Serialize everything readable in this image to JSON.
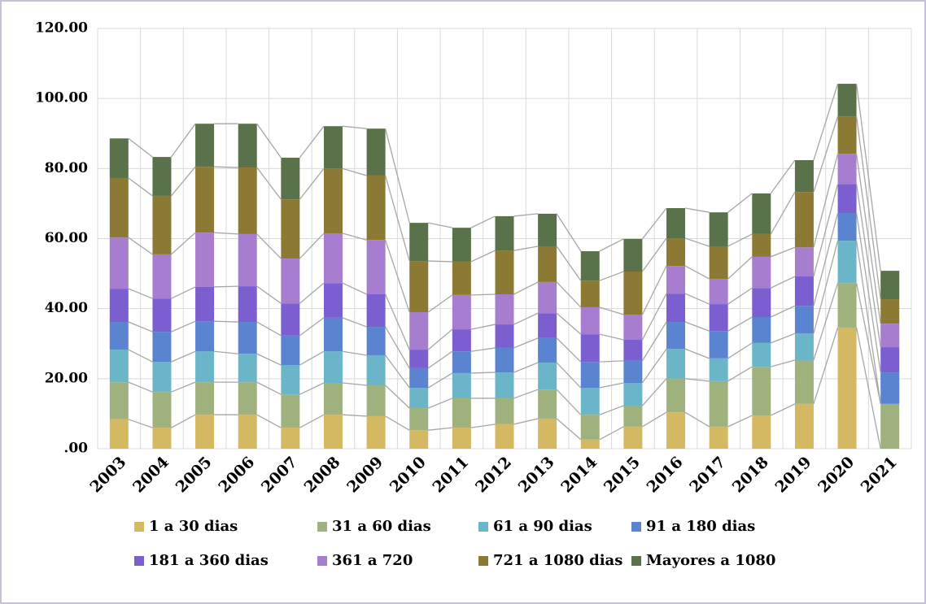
{
  "chart_data": {
    "type": "stacked-bar",
    "categories": [
      "2003",
      "2004",
      "2005",
      "2006",
      "2007",
      "2008",
      "2009",
      "2010",
      "2011",
      "2012",
      "2013",
      "2014",
      "2015",
      "2016",
      "2017",
      "2018",
      "2019",
      "2020",
      "2021"
    ],
    "series": [
      {
        "name": "1 a 30 dias",
        "color": "#d4b862",
        "values": [
          8.4,
          6.0,
          9.7,
          9.7,
          6.0,
          9.7,
          9.3,
          5.3,
          6.0,
          7.0,
          8.6,
          2.6,
          6.3,
          10.4,
          6.3,
          9.5,
          12.8,
          34.6,
          0
        ]
      },
      {
        "name": "31 a 60 dias",
        "color": "#9fb27d",
        "values": [
          10.6,
          10.2,
          9.3,
          9.3,
          9.5,
          9.1,
          8.8,
          6.3,
          8.4,
          7.4,
          8.3,
          7.1,
          6.0,
          9.6,
          13.0,
          13.9,
          12.5,
          12.7,
          12.8
        ]
      },
      {
        "name": "61 a 90 dias",
        "color": "#6bb5c9",
        "values": [
          9.3,
          8.6,
          8.8,
          8.1,
          8.4,
          9.0,
          8.6,
          5.8,
          7.2,
          7.4,
          7.7,
          7.7,
          6.5,
          8.5,
          6.5,
          6.8,
          7.6,
          12.1,
          0
        ]
      },
      {
        "name": "91 a 180 dias",
        "color": "#5a84cf",
        "values": [
          7.9,
          8.6,
          8.6,
          9.1,
          8.4,
          9.6,
          8.1,
          5.6,
          6.2,
          7.0,
          7.0,
          7.4,
          6.3,
          7.7,
          7.8,
          7.4,
          7.9,
          7.9,
          9.0
        ]
      },
      {
        "name": "181 a 360 dias",
        "color": "#7b5ecf",
        "values": [
          9.5,
          9.5,
          9.8,
          10.2,
          9.2,
          9.9,
          9.3,
          5.3,
          6.3,
          6.7,
          7.1,
          7.9,
          6.0,
          8.1,
          7.7,
          8.3,
          8.4,
          8.3,
          7.2
        ]
      },
      {
        "name": "361 a 720",
        "color": "#a77dcf",
        "values": [
          14.6,
          12.6,
          15.5,
          14.9,
          12.8,
          14.2,
          15.5,
          10.7,
          9.8,
          8.6,
          8.9,
          7.7,
          7.2,
          7.9,
          7.2,
          8.9,
          8.3,
          8.6,
          6.7
        ]
      },
      {
        "name": "721 a 1080 dias",
        "color": "#8c7a34",
        "values": [
          17.0,
          16.7,
          18.8,
          19.0,
          16.9,
          18.5,
          18.4,
          14.6,
          9.5,
          12.5,
          10.2,
          7.6,
          12.3,
          7.9,
          9.3,
          6.5,
          15.8,
          10.7,
          7.0
        ]
      },
      {
        "name": "Mayores a 1080",
        "color": "#5a7249",
        "values": [
          11.3,
          11.1,
          12.3,
          12.5,
          11.9,
          12.1,
          13.4,
          10.9,
          9.7,
          9.8,
          9.3,
          8.4,
          9.3,
          8.6,
          9.7,
          11.6,
          9.1,
          9.3,
          8.1
        ]
      }
    ],
    "ylim": [
      0,
      120
    ],
    "yticks": [
      {
        "value": 0,
        "label": ".00"
      },
      {
        "value": 20,
        "label": "20.00"
      },
      {
        "value": 40,
        "label": "40.00"
      },
      {
        "value": 60,
        "label": "60.00"
      },
      {
        "value": 80,
        "label": "80.00"
      },
      {
        "value": 100,
        "label": "100.00"
      },
      {
        "value": 120,
        "label": "120.00"
      }
    ],
    "grid": true
  }
}
